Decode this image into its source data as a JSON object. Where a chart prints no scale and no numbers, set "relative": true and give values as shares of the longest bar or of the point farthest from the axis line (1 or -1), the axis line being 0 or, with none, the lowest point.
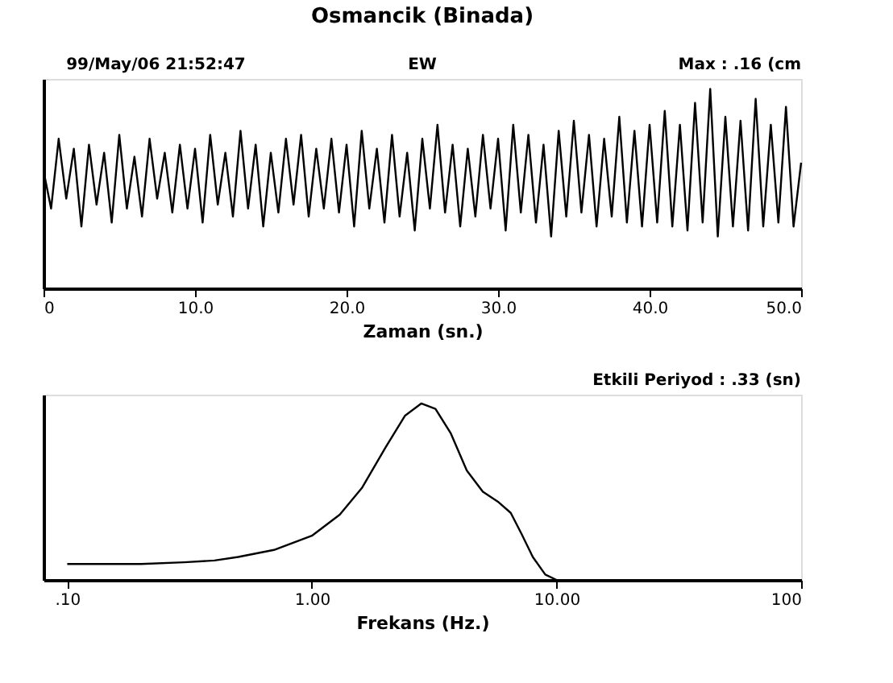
{
  "chart_data": [
    {
      "type": "line",
      "title": "Osmancik  (Binada)",
      "xlabel": "Zaman (sn.)",
      "relative": true,
      "xlim": [
        0,
        50
      ],
      "xticks": [
        {
          "value": 0,
          "label": "0"
        },
        {
          "value": 10,
          "label": "10.0"
        },
        {
          "value": 20,
          "label": "20.0"
        },
        {
          "value": 30,
          "label": "30.0"
        },
        {
          "value": 40,
          "label": "40.0"
        },
        {
          "value": 50,
          "label": "50.0"
        }
      ],
      "grid": false,
      "annotations": [
        "99/May/06 21:52:47",
        "EW",
        "Max :   .16 (cm"
      ],
      "x": [
        0,
        0.5,
        1,
        1.5,
        2,
        2.5,
        3,
        3.5,
        4,
        4.5,
        5,
        5.5,
        6,
        6.5,
        7,
        7.5,
        8,
        8.5,
        9,
        9.5,
        10,
        10.5,
        11,
        11.5,
        12,
        12.5,
        13,
        13.5,
        14,
        14.5,
        15,
        15.5,
        16,
        16.5,
        17,
        17.5,
        18,
        18.5,
        19,
        19.5,
        20,
        20.5,
        21,
        21.5,
        22,
        22.5,
        23,
        23.5,
        24,
        24.5,
        25,
        25.5,
        26,
        26.5,
        27,
        27.5,
        28,
        28.5,
        29,
        29.5,
        30,
        30.5,
        31,
        31.5,
        32,
        32.5,
        33,
        33.5,
        34,
        34.5,
        35,
        35.5,
        36,
        36.5,
        37,
        37.5,
        38,
        38.5,
        39,
        39.5,
        40,
        40.5,
        41,
        41.5,
        42,
        42.5,
        43,
        43.5,
        44,
        44.5,
        45,
        45.5,
        46,
        46.5,
        47,
        47.5,
        48,
        48.5,
        49,
        49.5,
        50
      ],
      "series": [
        {
          "color": "#000000",
          "values": [
            0.59,
            0.4,
            0.75,
            0.45,
            0.7,
            0.31,
            0.72,
            0.42,
            0.68,
            0.33,
            0.77,
            0.4,
            0.66,
            0.36,
            0.75,
            0.45,
            0.68,
            0.38,
            0.72,
            0.4,
            0.7,
            0.33,
            0.77,
            0.42,
            0.68,
            0.36,
            0.79,
            0.4,
            0.72,
            0.31,
            0.68,
            0.38,
            0.75,
            0.42,
            0.77,
            0.36,
            0.7,
            0.4,
            0.75,
            0.38,
            0.72,
            0.31,
            0.79,
            0.4,
            0.7,
            0.33,
            0.77,
            0.36,
            0.68,
            0.29,
            0.75,
            0.4,
            0.82,
            0.38,
            0.72,
            0.31,
            0.7,
            0.36,
            0.77,
            0.4,
            0.75,
            0.29,
            0.82,
            0.38,
            0.77,
            0.33,
            0.72,
            0.26,
            0.79,
            0.36,
            0.84,
            0.38,
            0.77,
            0.31,
            0.75,
            0.36,
            0.86,
            0.33,
            0.79,
            0.31,
            0.82,
            0.33,
            0.89,
            0.31,
            0.82,
            0.29,
            0.93,
            0.33,
            1.0,
            0.26,
            0.86,
            0.31,
            0.84,
            0.29,
            0.95,
            0.31,
            0.82,
            0.33,
            0.91,
            0.31,
            0.63
          ]
        }
      ]
    },
    {
      "type": "line",
      "xlabel": "Frekans (Hz.)",
      "relative": true,
      "log": "x",
      "xlim": [
        0.08,
        100
      ],
      "xticks": [
        {
          "value": 0.1,
          "label": ".10"
        },
        {
          "value": 1,
          "label": "1.00"
        },
        {
          "value": 10,
          "label": "10.00"
        },
        100
      ],
      "grid": false,
      "annotations": [
        "Etkili Periyod :   .33 (sn)"
      ],
      "x": [
        0.1,
        0.2,
        0.3,
        0.4,
        0.5,
        0.7,
        1.0,
        1.3,
        1.6,
        2.0,
        2.4,
        2.8,
        3.2,
        3.7,
        4.3,
        5.0,
        5.8,
        6.5,
        7.2,
        8.0,
        9.0,
        10
      ],
      "series": [
        {
          "color": "#000000",
          "values": [
            0.09,
            0.09,
            0.1,
            0.11,
            0.13,
            0.17,
            0.25,
            0.37,
            0.52,
            0.75,
            0.93,
            1.0,
            0.97,
            0.83,
            0.62,
            0.5,
            0.44,
            0.38,
            0.26,
            0.13,
            0.03,
            0
          ]
        }
      ]
    }
  ]
}
